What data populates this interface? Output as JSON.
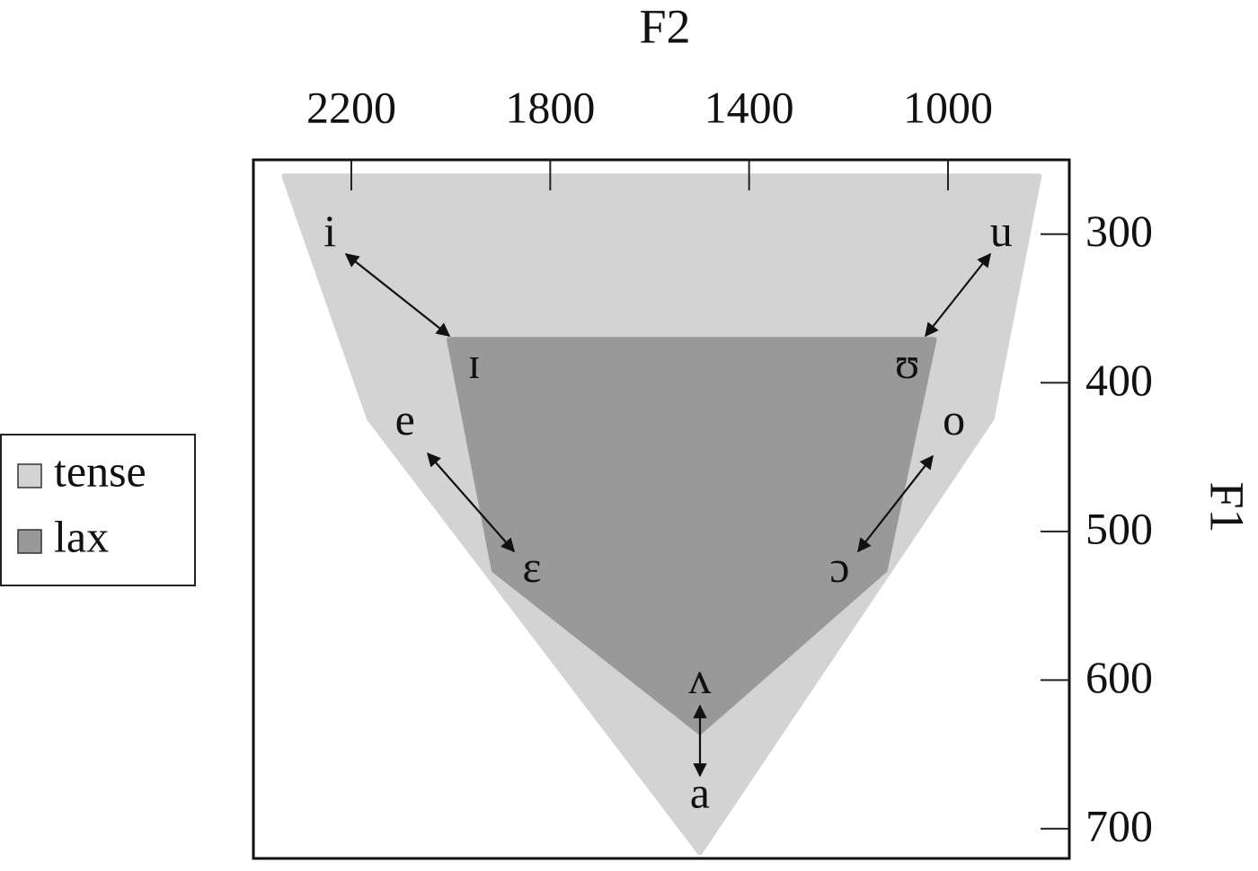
{
  "chart_data": {
    "type": "polygon",
    "xlabel": "F2",
    "ylabel": "F1",
    "xlim": [
      2397,
      756
    ],
    "ylim": [
      250,
      720
    ],
    "xticks": [
      2200,
      1800,
      1400,
      1000
    ],
    "yticks": [
      300,
      400,
      500,
      600,
      700
    ],
    "legend": "left",
    "series": [
      {
        "name": "tense",
        "color": "#d3d3d3",
        "x": [
          2335,
          817,
          912,
          1499,
          2164
        ],
        "y": [
          261,
          261,
          424,
          716,
          424
        ]
      },
      {
        "name": "lax",
        "color": "#999999",
        "x": [
          2003,
          1028,
          1127,
          1499,
          1913
        ],
        "y": [
          371,
          371,
          526,
          635,
          526
        ]
      }
    ],
    "points": {
      "labels": [
        "i",
        "u",
        "ɪ",
        "ʊ",
        "e",
        "o",
        "ɛ",
        "ɔ",
        "ʌ",
        "a"
      ],
      "x": [
        2243,
        893,
        1953,
        1082,
        2092,
        988,
        1837,
        1218,
        1499,
        1499
      ],
      "y": [
        301,
        301,
        390,
        390,
        428,
        428,
        527,
        527,
        602,
        679
      ]
    }
  }
}
